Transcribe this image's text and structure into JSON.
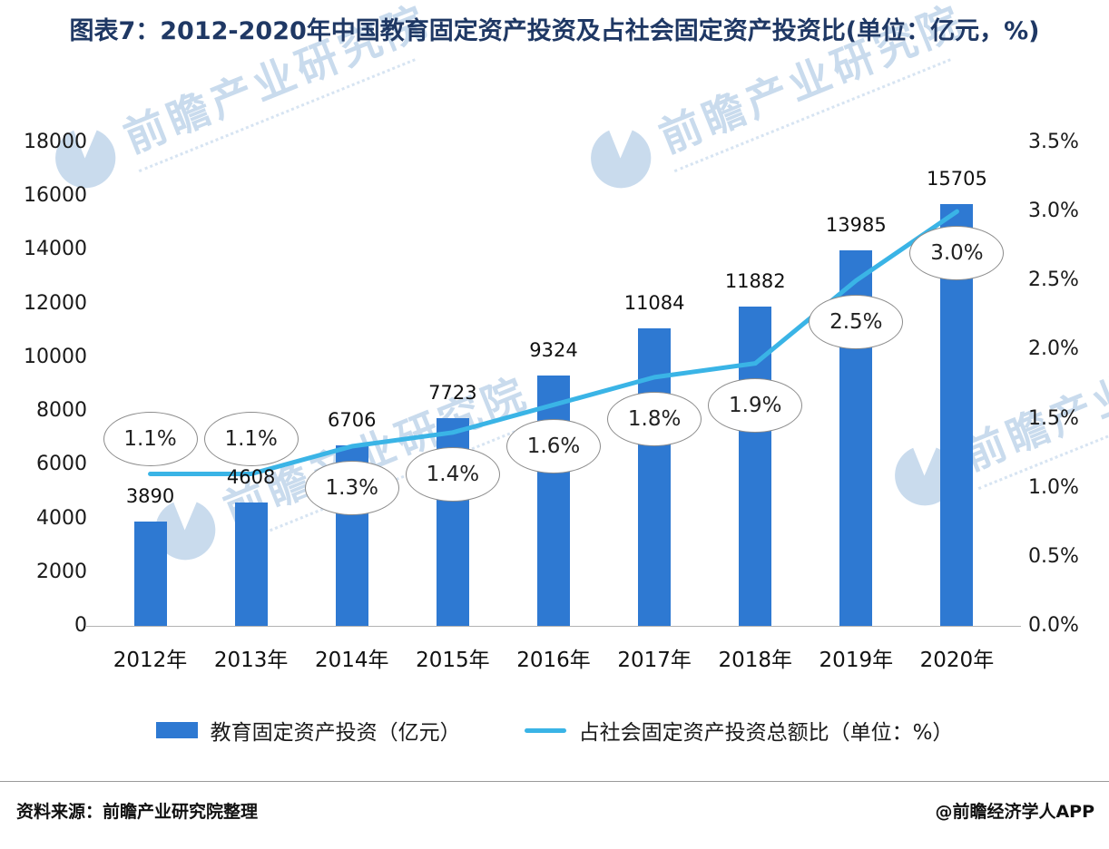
{
  "title": "图表7：2012-2020年中国教育固定资产投资及占社会固定资产投资比(单位：亿元，%)",
  "watermark": {
    "text": "前瞻产业研究院"
  },
  "chart_data": {
    "type": "bar+line",
    "title": "图表7：2012-2020年中国教育固定资产投资及占社会固定资产投资比(单位：亿元，%)",
    "categories": [
      "2012年",
      "2013年",
      "2014年",
      "2015年",
      "2016年",
      "2017年",
      "2018年",
      "2019年",
      "2020年"
    ],
    "series": [
      {
        "name": "教育固定资产投资（亿元）",
        "type": "bar",
        "axis": "left",
        "color": "#2e79d2",
        "values": [
          3890,
          4608,
          6706,
          7723,
          9324,
          11084,
          11882,
          13985,
          15705
        ]
      },
      {
        "name": "占社会固定资产投资总额比（单位：%）",
        "type": "line",
        "axis": "right",
        "color": "#3ab4e6",
        "values": [
          1.1,
          1.1,
          1.3,
          1.4,
          1.6,
          1.8,
          1.9,
          2.5,
          3.0
        ]
      }
    ],
    "bar_labels": [
      "3890",
      "4608",
      "6706",
      "7723",
      "9324",
      "11084",
      "11882",
      "13985",
      "15705"
    ],
    "pct_labels": [
      "1.1%",
      "1.1%",
      "1.3%",
      "1.4%",
      "1.6%",
      "1.8%",
      "1.9%",
      "2.5%",
      "3.0%"
    ],
    "left_axis": {
      "min": 0,
      "max": 18000,
      "step": 2000
    },
    "right_axis": {
      "min": 0,
      "max": 3.5,
      "step": 0.5,
      "suffix": "%"
    },
    "grid": "off",
    "legend_position": "bottom"
  },
  "footer": {
    "source": "资料来源：前瞻产业研究院整理",
    "credit": "@前瞻经济学人APP"
  }
}
